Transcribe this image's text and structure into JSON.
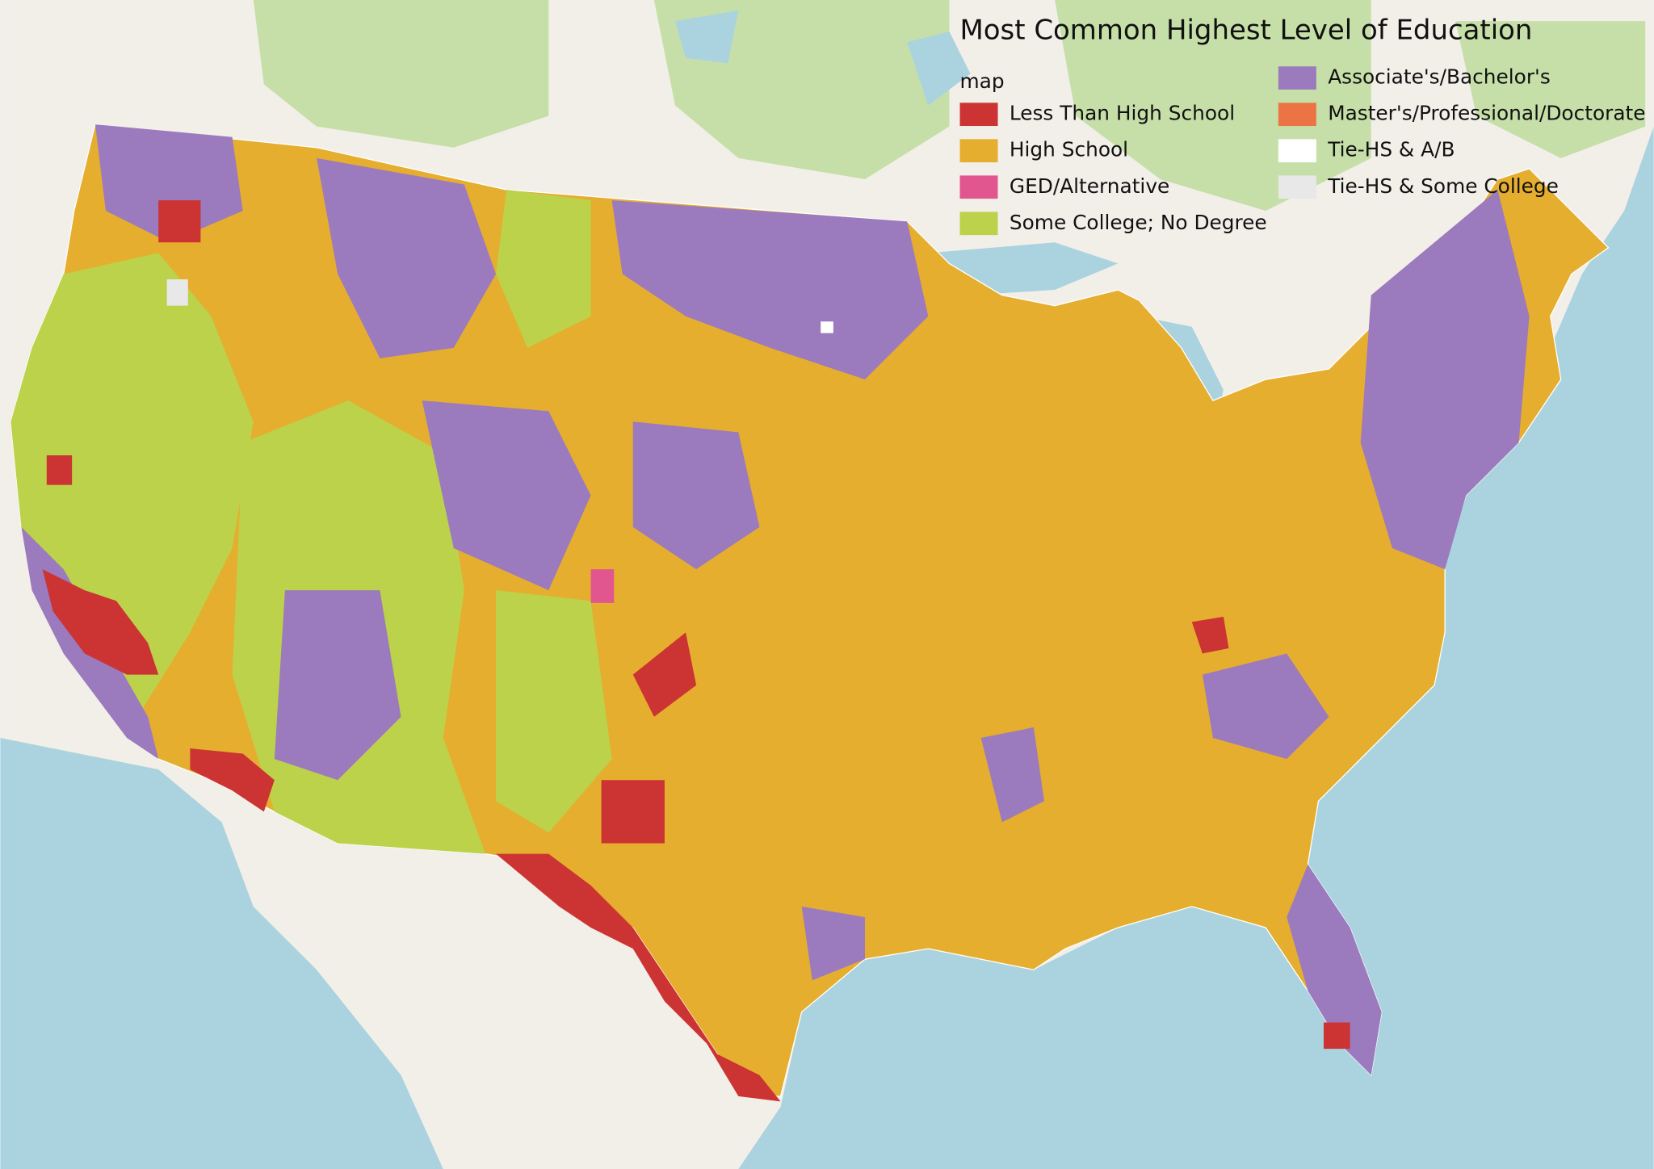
{
  "map": {
    "title": "Most Common Highest Level of Education",
    "legend_title": "map",
    "legend": [
      {
        "label": "Less Than High School",
        "color": "#cc3333"
      },
      {
        "label": "High School",
        "color": "#e6ae2e"
      },
      {
        "label": "GED/Alternative",
        "color": "#e25690"
      },
      {
        "label": "Some College; No Degree",
        "color": "#bcd24a"
      },
      {
        "label": "Associate's/Bachelor's",
        "color": "#9b7bbd"
      },
      {
        "label": "Master's/Professional/Doctorate",
        "color": "#ec7444"
      },
      {
        "label": "Tie-HS & A/B",
        "color": "#ffffff"
      },
      {
        "label": "Tie-HS & Some College",
        "color": "#e8e8e8"
      }
    ]
  }
}
